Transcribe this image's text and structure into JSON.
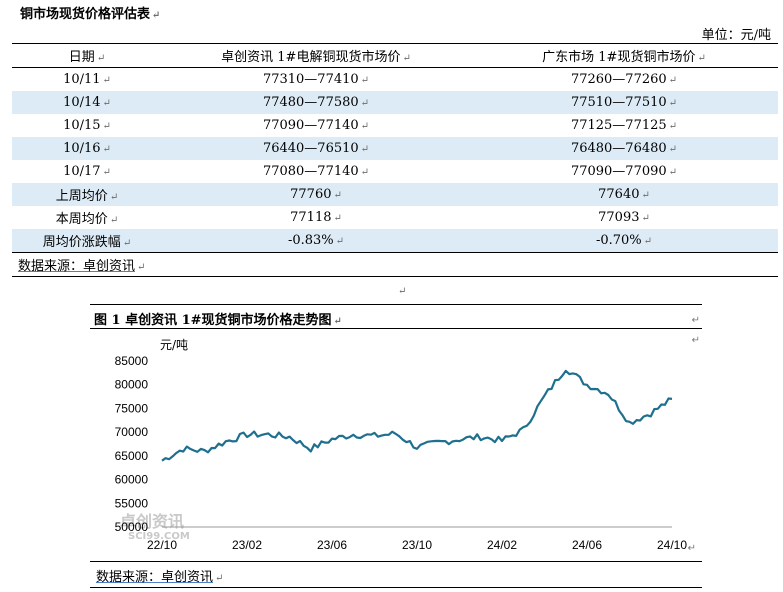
{
  "document": {
    "title": "铜市场现货价格评估表",
    "unit": "单位：元/吨"
  },
  "table": {
    "headers": [
      "日期",
      "卓创资讯 1#电解铜现货市场价",
      "广东市场 1#现货铜市场价"
    ],
    "rows": [
      {
        "date": "10/11",
        "sci": "77310—77410",
        "gd": "77260—77260",
        "shade": false
      },
      {
        "date": "10/14",
        "sci": "77480—77580",
        "gd": "77510—77510",
        "shade": true
      },
      {
        "date": "10/15",
        "sci": "77090—77140",
        "gd": "77125—77125",
        "shade": false
      },
      {
        "date": "10/16",
        "sci": "76440—76510",
        "gd": "76480—76480",
        "shade": true
      },
      {
        "date": "10/17",
        "sci": "77080—77140",
        "gd": "77090—77090",
        "shade": false
      },
      {
        "date": "上周均价",
        "sci": "77760",
        "gd": "77640",
        "shade": true
      },
      {
        "date": "本周均价",
        "sci": "77118",
        "gd": "77093",
        "shade": false
      },
      {
        "date": "周均价涨跌幅",
        "sci": "-0.83%",
        "gd": "-0.70%",
        "shade": true
      }
    ],
    "source": "数据来源：卓创资讯"
  },
  "figure": {
    "title": "图 1  卓创资讯 1#现货铜市场价格走势图",
    "source": "数据来源：卓创资讯"
  },
  "chart_data": {
    "type": "line",
    "ylabel": "元/吨",
    "ylim": [
      50000,
      85000
    ],
    "yticks": [
      50000,
      55000,
      60000,
      65000,
      70000,
      75000,
      80000,
      85000
    ],
    "xticks": [
      "22/10",
      "23/02",
      "23/06",
      "23/10",
      "24/02",
      "24/06",
      "24/10"
    ],
    "line_color": "#1f6f8f",
    "watermark": "卓创资讯",
    "watermark_url": "SCI99.COM",
    "series": [
      {
        "name": "",
        "x": [
          "22/10",
          "22/11",
          "22/12",
          "23/01",
          "23/02",
          "23/03",
          "23/04",
          "23/05",
          "23/06",
          "23/07",
          "23/08",
          "23/09",
          "23/10",
          "23/11",
          "23/12",
          "24/01",
          "24/02",
          "24/03",
          "24/04",
          "24/05",
          "24/06",
          "24/07",
          "24/08",
          "24/09",
          "24/10"
        ],
        "values": [
          64000,
          66500,
          66000,
          68000,
          69500,
          69500,
          69000,
          66500,
          68500,
          69500,
          69200,
          69700,
          66800,
          67800,
          68500,
          69000,
          68200,
          70500,
          77500,
          83500,
          80000,
          78200,
          72000,
          74000,
          77000
        ]
      }
    ]
  }
}
